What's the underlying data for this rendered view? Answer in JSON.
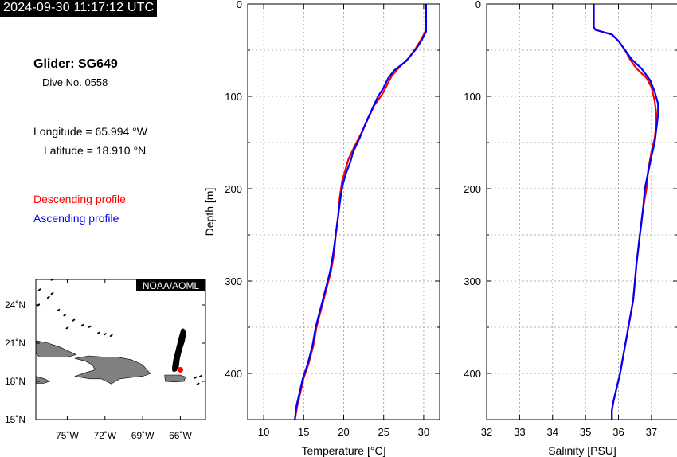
{
  "header": {
    "timestamp": "2024-09-30 11:17:12 UTC"
  },
  "info": {
    "glider": "Glider: SG649",
    "dive": "Dive No. 0558",
    "longitude": "Longitude = 65.994 °W",
    "latitude": "Latitude = 18.910 °N"
  },
  "legend": {
    "descending": "Descending profile",
    "ascending": "Ascending profile"
  },
  "colors": {
    "descending": "#ff0000",
    "ascending": "#0000ff",
    "land": "#808080",
    "track": "#000000"
  },
  "map": {
    "credit": "NOAA/AOML",
    "lon_ticks": [
      "75˚W",
      "72˚W",
      "69˚W",
      "66˚W"
    ],
    "lat_ticks": [
      "24˚N",
      "21˚N",
      "18˚N",
      "15˚N"
    ],
    "lon_range": [
      -77.5,
      -64
    ],
    "lat_range": [
      15,
      26
    ],
    "track_lon": [
      -66.3,
      -66.2,
      -66.0,
      -65.8,
      -65.7,
      -65.8,
      -66.0,
      -66.2,
      -66.4,
      -66.5,
      -66.5,
      -66.3
    ],
    "track_lat": [
      19.0,
      19.8,
      20.6,
      21.2,
      21.8,
      22.0,
      21.3,
      20.5,
      19.7,
      19.1,
      18.9,
      19.0
    ],
    "glider_position": [
      -65.994,
      18.91
    ]
  },
  "chart_data": [
    {
      "type": "line",
      "xlabel": "Temperature [°C]",
      "ylabel": "Depth [m]",
      "xlim": [
        8,
        32
      ],
      "ylim": [
        450,
        0
      ],
      "xticks": [
        10,
        15,
        20,
        25,
        30
      ],
      "yticks": [
        0,
        100,
        200,
        300,
        400
      ],
      "grid": true,
      "series": [
        {
          "name": "Descending profile",
          "color": "#ff0000",
          "x": [
            30.3,
            30.3,
            30.2,
            29.6,
            29.0,
            28.2,
            27.0,
            26.0,
            25.4,
            24.8,
            23.8,
            23.0,
            22.2,
            21.3,
            20.6,
            20.2,
            19.8,
            19.5,
            19.3,
            19.0,
            18.8,
            18.4,
            17.8,
            17.2,
            16.6,
            16.2,
            15.6,
            15.0,
            14.6,
            14.2,
            13.9
          ],
          "y": [
            0,
            10,
            30,
            40,
            48,
            58,
            68,
            78,
            88,
            98,
            110,
            125,
            140,
            155,
            168,
            180,
            192,
            210,
            230,
            250,
            270,
            290,
            310,
            330,
            350,
            370,
            390,
            405,
            420,
            435,
            450
          ]
        },
        {
          "name": "Ascending profile",
          "color": "#0000ff",
          "x": [
            30.3,
            30.3,
            30.3,
            29.7,
            29.1,
            27.8,
            26.3,
            25.6,
            24.9,
            24.3,
            23.5,
            22.8,
            22.0,
            21.2,
            20.8,
            20.3,
            19.9,
            19.6,
            19.3,
            19.0,
            18.7,
            18.3,
            17.7,
            17.1,
            16.5,
            16.1,
            15.5,
            14.9,
            14.5,
            14.1,
            13.9
          ],
          "y": [
            0,
            10,
            30,
            40,
            48,
            62,
            72,
            80,
            92,
            100,
            115,
            128,
            145,
            160,
            172,
            183,
            195,
            210,
            230,
            250,
            270,
            290,
            310,
            330,
            350,
            370,
            390,
            405,
            420,
            435,
            450
          ]
        }
      ]
    },
    {
      "type": "line",
      "xlabel": "Salinity [PSU]",
      "ylabel": "",
      "xlim": [
        32,
        37.8
      ],
      "ylim": [
        450,
        0
      ],
      "xticks": [
        32,
        33,
        34,
        35,
        36,
        37
      ],
      "yticks": [
        0,
        100,
        200,
        300,
        400
      ],
      "grid": true,
      "series": [
        {
          "name": "Descending profile",
          "color": "#ff0000",
          "x": [
            35.25,
            35.25,
            35.3,
            35.8,
            36.0,
            36.2,
            36.35,
            36.55,
            36.85,
            37.0,
            37.1,
            37.15,
            37.15,
            37.1,
            37.0,
            36.9,
            36.85,
            36.75,
            36.65,
            36.55,
            36.5,
            36.45,
            36.35,
            36.25,
            36.15,
            36.05,
            35.95,
            35.85,
            35.8,
            35.8
          ],
          "y": [
            0,
            25,
            28,
            33,
            40,
            50,
            60,
            70,
            80,
            90,
            105,
            120,
            130,
            145,
            160,
            180,
            200,
            220,
            250,
            280,
            300,
            320,
            340,
            360,
            380,
            400,
            415,
            430,
            440,
            450
          ]
        },
        {
          "name": "Ascending profile",
          "color": "#0000ff",
          "x": [
            35.25,
            35.25,
            35.3,
            35.8,
            36.0,
            36.2,
            36.4,
            36.7,
            36.95,
            37.1,
            37.2,
            37.2,
            37.15,
            37.1,
            37.0,
            36.9,
            36.8,
            36.75,
            36.65,
            36.55,
            36.5,
            36.45,
            36.35,
            36.25,
            36.15,
            36.05,
            35.95,
            35.85,
            35.8,
            35.8
          ],
          "y": [
            0,
            25,
            28,
            33,
            40,
            50,
            60,
            70,
            82,
            95,
            108,
            120,
            135,
            150,
            165,
            182,
            200,
            220,
            250,
            280,
            300,
            320,
            340,
            360,
            380,
            400,
            415,
            430,
            440,
            450
          ]
        }
      ]
    }
  ]
}
